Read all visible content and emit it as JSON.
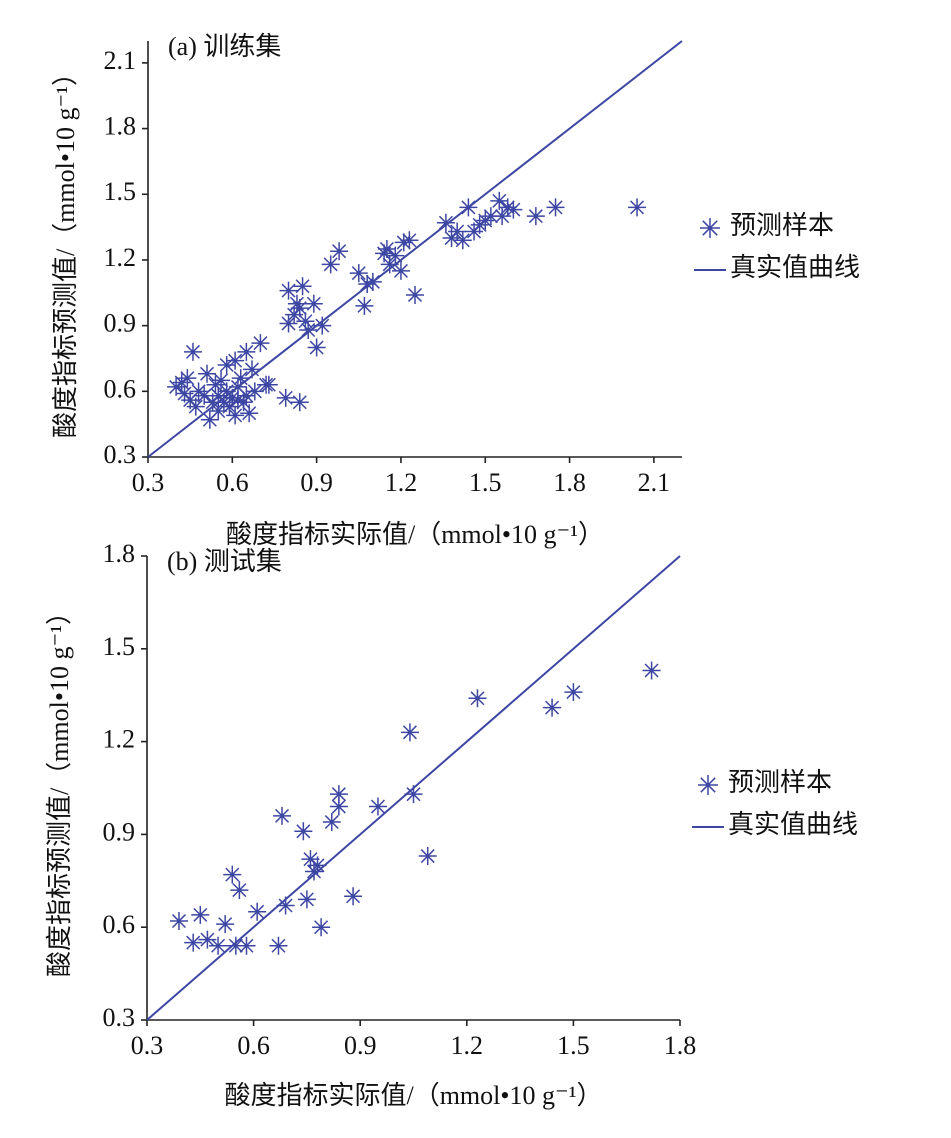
{
  "chart_data": [
    {
      "type": "scatter",
      "title": "(a) 训练集",
      "x_label": "酸度指标实际值/（mmol•10 g⁻¹）",
      "y_label": "酸度指标预测值/（mmol•10 g⁻¹）",
      "xlim": [
        0.3,
        2.2
      ],
      "ylim": [
        0.3,
        2.2
      ],
      "xticks": [
        0.3,
        0.6,
        0.9,
        1.2,
        1.5,
        1.8,
        2.1
      ],
      "yticks": [
        0.3,
        0.6,
        0.9,
        1.2,
        1.5,
        1.8,
        2.1
      ],
      "legend": "right",
      "series": [
        {
          "name": "预测样本",
          "color": "#3d47a3",
          "x": [
            0.42,
            0.44,
            0.46,
            0.45,
            0.47,
            0.48,
            0.5,
            0.51,
            0.52,
            0.53,
            0.54,
            0.55,
            0.55,
            0.56,
            0.57,
            0.58,
            0.59,
            0.6,
            0.61,
            0.61,
            0.62,
            0.63,
            0.64,
            0.65,
            0.65,
            0.66,
            0.67,
            0.68,
            0.7,
            0.72,
            0.73,
            0.4,
            0.43,
            0.58,
            0.62,
            0.79,
            0.8,
            0.8,
            0.82,
            0.83,
            0.84,
            0.84,
            0.85,
            0.86,
            0.87,
            0.89,
            0.9,
            0.92,
            0.95,
            0.98,
            1.05,
            1.07,
            1.08,
            1.1,
            1.14,
            1.15,
            1.16,
            1.18,
            1.2,
            1.21,
            1.23,
            1.25,
            1.36,
            1.38,
            1.4,
            1.42,
            1.44,
            1.46,
            1.48,
            1.5,
            1.52,
            1.55,
            1.56,
            1.58,
            1.6,
            1.68,
            1.75,
            2.04
          ],
          "values": [
            0.64,
            0.66,
            0.78,
            0.56,
            0.53,
            0.6,
            0.58,
            0.68,
            0.47,
            0.55,
            0.63,
            0.51,
            0.58,
            0.65,
            0.55,
            0.6,
            0.53,
            0.57,
            0.74,
            0.49,
            0.62,
            0.66,
            0.55,
            0.58,
            0.78,
            0.5,
            0.7,
            0.6,
            0.82,
            0.63,
            0.63,
            0.62,
            0.59,
            0.72,
            0.56,
            0.57,
            0.91,
            1.06,
            0.95,
            1.0,
            0.55,
            0.98,
            1.08,
            0.92,
            0.88,
            1.0,
            0.8,
            0.9,
            1.18,
            1.24,
            1.14,
            0.99,
            1.09,
            1.1,
            1.23,
            1.25,
            1.18,
            1.22,
            1.15,
            1.28,
            1.29,
            1.04,
            1.37,
            1.3,
            1.33,
            1.29,
            1.44,
            1.33,
            1.36,
            1.38,
            1.4,
            1.47,
            1.4,
            1.44,
            1.43,
            1.4,
            1.44,
            1.44
          ]
        }
      ],
      "reference_line": {
        "name": "真实值曲线",
        "color": "#3d47a3"
      }
    },
    {
      "type": "scatter",
      "title": "(b) 测试集",
      "x_label": "酸度指标实际值/（mmol•10 g⁻¹）",
      "y_label": "酸度指标预测值/（mmol•10 g⁻¹）",
      "xlim": [
        0.3,
        1.8
      ],
      "ylim": [
        0.3,
        1.8
      ],
      "xticks": [
        0.3,
        0.6,
        0.9,
        1.2,
        1.5,
        1.8
      ],
      "yticks": [
        0.3,
        0.6,
        0.9,
        1.2,
        1.5,
        1.8
      ],
      "legend": "right",
      "series": [
        {
          "name": "预测样本",
          "color": "#3d47a3",
          "x": [
            0.39,
            0.43,
            0.45,
            0.47,
            0.5,
            0.52,
            0.54,
            0.55,
            0.56,
            0.58,
            0.61,
            0.67,
            0.68,
            0.69,
            0.74,
            0.75,
            0.76,
            0.77,
            0.78,
            0.79,
            0.82,
            0.84,
            0.84,
            0.88,
            0.95,
            1.04,
            1.05,
            1.09,
            1.23,
            1.44,
            1.5,
            1.72
          ],
          "values": [
            0.62,
            0.55,
            0.64,
            0.56,
            0.54,
            0.61,
            0.77,
            0.54,
            0.72,
            0.54,
            0.65,
            0.54,
            0.96,
            0.67,
            0.91,
            0.69,
            0.82,
            0.78,
            0.8,
            0.6,
            0.94,
            1.03,
            0.99,
            0.7,
            0.99,
            1.23,
            1.03,
            0.83,
            1.34,
            1.31,
            1.36,
            1.43
          ]
        }
      ],
      "reference_line": {
        "name": "真实值曲线",
        "color": "#3d47a3"
      }
    }
  ]
}
